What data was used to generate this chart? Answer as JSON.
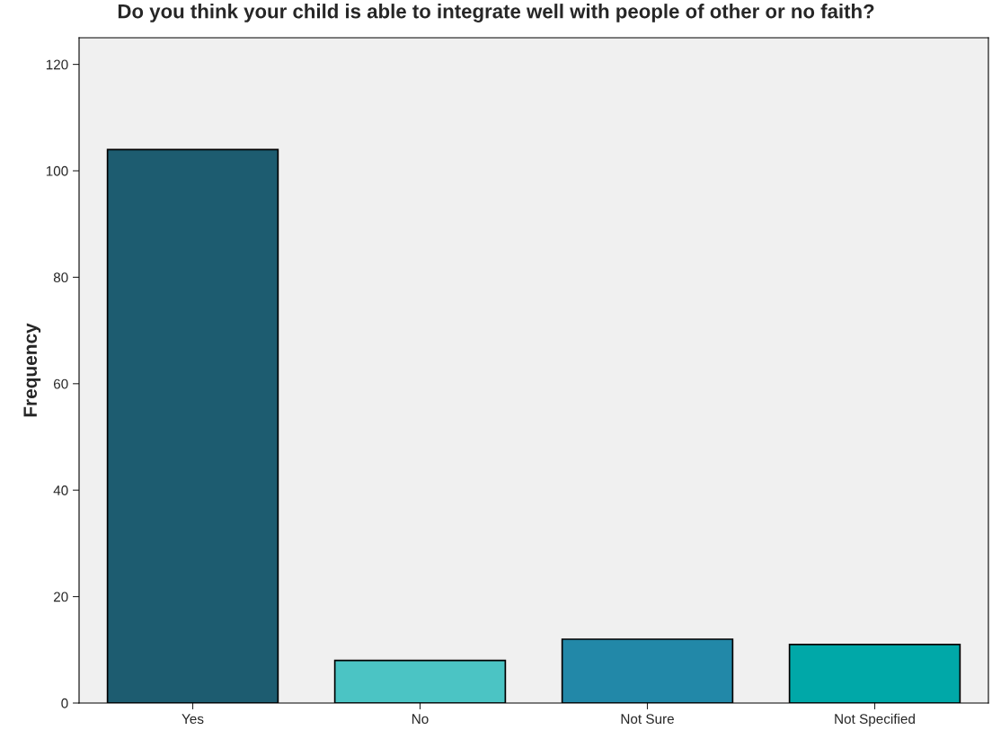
{
  "chart_data": {
    "type": "bar",
    "title": "Do you think your child is able to integrate well with people of other or no faith?",
    "ylabel": "Frequency",
    "categories": [
      "Yes",
      "No",
      "Not Sure",
      "Not Specified"
    ],
    "values": [
      104,
      8,
      12,
      11
    ],
    "colors": [
      "#1d5c70",
      "#4bc4c4",
      "#2288a8",
      "#00a8a8"
    ],
    "ylim": [
      0,
      125
    ],
    "yticks": [
      0,
      20,
      40,
      60,
      80,
      100,
      120
    ],
    "grid": false
  }
}
